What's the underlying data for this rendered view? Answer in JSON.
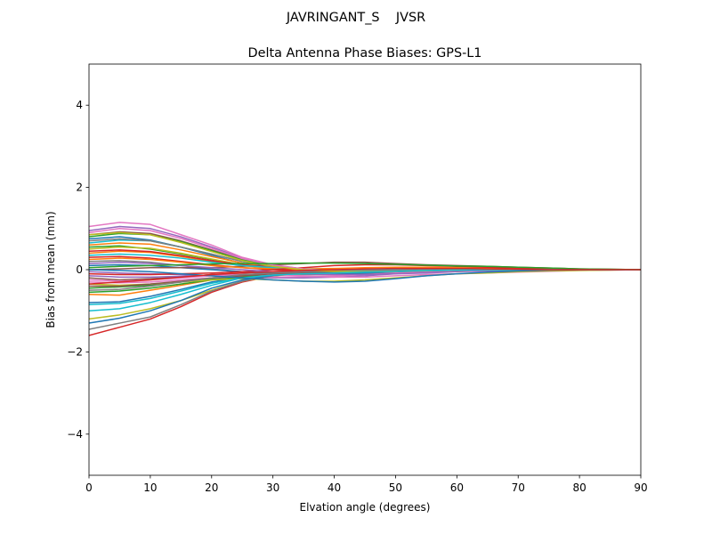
{
  "figure": {
    "suptitle": "JAVRINGANT_S    JVSR"
  },
  "chart_data": {
    "type": "line",
    "title": "Delta Antenna Phase Biases: GPS-L1",
    "xlabel": "Elvation angle (degrees)",
    "ylabel": "Bias from mean (mm)",
    "xlim": [
      0,
      90
    ],
    "ylim": [
      -5,
      5
    ],
    "xticks": [
      0,
      10,
      20,
      30,
      40,
      50,
      60,
      70,
      80,
      90
    ],
    "yticks": [
      -4,
      -2,
      0,
      2,
      4
    ],
    "xtick_labels": [
      "0",
      "10",
      "20",
      "30",
      "40",
      "50",
      "60",
      "70",
      "80",
      "90"
    ],
    "ytick_labels": [
      "−4",
      "−2",
      "0",
      "2",
      "4"
    ],
    "grid": false,
    "legend": "none",
    "x": [
      0,
      5,
      10,
      15,
      20,
      25,
      30,
      35,
      40,
      45,
      50,
      55,
      60,
      65,
      70,
      75,
      80,
      85,
      90
    ],
    "series": [
      {
        "color": "#1f77b4",
        "values": [
          0.75,
          0.8,
          0.72,
          0.55,
          0.35,
          0.15,
          0.05,
          -0.05,
          -0.1,
          -0.1,
          -0.08,
          -0.05,
          -0.02,
          0.0,
          0.02,
          0.02,
          0.01,
          0.0,
          0.0
        ]
      },
      {
        "color": "#ff7f0e",
        "values": [
          -0.6,
          -0.62,
          -0.5,
          -0.38,
          -0.25,
          -0.15,
          -0.1,
          -0.08,
          -0.07,
          -0.05,
          -0.03,
          -0.02,
          -0.01,
          0.0,
          0.01,
          0.01,
          0.0,
          0.0,
          0.0
        ]
      },
      {
        "color": "#2ca02c",
        "values": [
          0.55,
          0.58,
          0.5,
          0.38,
          0.25,
          0.12,
          0.05,
          0.0,
          -0.03,
          -0.04,
          -0.03,
          -0.02,
          -0.01,
          0.0,
          0.01,
          0.01,
          0.0,
          0.0,
          0.0
        ]
      },
      {
        "color": "#d62728",
        "values": [
          -1.6,
          -1.4,
          -1.2,
          -0.9,
          -0.55,
          -0.3,
          -0.15,
          -0.08,
          -0.05,
          -0.03,
          -0.02,
          -0.01,
          0.0,
          0.0,
          0.0,
          0.0,
          0.0,
          0.0,
          0.0
        ]
      },
      {
        "color": "#9467bd",
        "values": [
          0.95,
          1.05,
          1.0,
          0.8,
          0.55,
          0.28,
          0.1,
          0.0,
          -0.05,
          -0.06,
          -0.05,
          -0.03,
          -0.01,
          0.0,
          0.01,
          0.01,
          0.0,
          0.0,
          0.0
        ]
      },
      {
        "color": "#8c564b",
        "values": [
          -0.2,
          -0.25,
          -0.22,
          -0.18,
          -0.12,
          -0.08,
          -0.05,
          -0.03,
          -0.02,
          -0.01,
          0.0,
          0.01,
          0.01,
          0.01,
          0.01,
          0.0,
          0.0,
          0.0,
          0.0
        ]
      },
      {
        "color": "#e377c2",
        "values": [
          1.05,
          1.15,
          1.1,
          0.85,
          0.6,
          0.3,
          0.12,
          0.02,
          -0.03,
          -0.05,
          -0.04,
          -0.02,
          -0.01,
          0.0,
          0.01,
          0.01,
          0.0,
          0.0,
          0.0
        ]
      },
      {
        "color": "#7f7f7f",
        "values": [
          0.2,
          0.22,
          0.18,
          0.1,
          0.02,
          -0.05,
          -0.1,
          -0.12,
          -0.12,
          -0.1,
          -0.07,
          -0.04,
          -0.02,
          0.0,
          0.01,
          0.01,
          0.0,
          0.0,
          0.0
        ]
      },
      {
        "color": "#bcbd22",
        "values": [
          -1.2,
          -1.1,
          -0.95,
          -0.75,
          -0.5,
          -0.28,
          -0.15,
          -0.1,
          -0.08,
          -0.05,
          -0.03,
          -0.01,
          0.0,
          0.01,
          0.01,
          0.0,
          0.0,
          0.0,
          0.0
        ]
      },
      {
        "color": "#17becf",
        "values": [
          0.65,
          0.72,
          0.7,
          0.55,
          0.38,
          0.2,
          0.08,
          0.0,
          -0.04,
          -0.05,
          -0.04,
          -0.02,
          -0.01,
          0.0,
          0.01,
          0.01,
          0.0,
          0.0,
          0.0
        ]
      },
      {
        "color": "#1f77b4",
        "values": [
          -0.8,
          -0.78,
          -0.65,
          -0.48,
          -0.3,
          -0.18,
          -0.12,
          -0.1,
          -0.08,
          -0.06,
          -0.04,
          -0.02,
          -0.01,
          0.0,
          0.01,
          0.01,
          0.0,
          0.0,
          0.0
        ]
      },
      {
        "color": "#ff7f0e",
        "values": [
          0.4,
          0.45,
          0.42,
          0.32,
          0.2,
          0.1,
          0.03,
          -0.02,
          -0.04,
          -0.04,
          -0.03,
          -0.02,
          -0.01,
          0.0,
          0.0,
          0.0,
          0.0,
          0.0,
          0.0
        ]
      },
      {
        "color": "#2ca02c",
        "values": [
          -0.45,
          -0.42,
          -0.38,
          -0.3,
          -0.22,
          -0.15,
          -0.1,
          -0.08,
          -0.06,
          -0.04,
          -0.02,
          -0.01,
          0.0,
          0.01,
          0.01,
          0.0,
          0.0,
          0.0,
          0.0
        ]
      },
      {
        "color": "#d62728",
        "values": [
          0.3,
          0.32,
          0.28,
          0.2,
          0.12,
          0.05,
          0.0,
          -0.03,
          -0.05,
          -0.05,
          -0.04,
          -0.02,
          -0.01,
          0.0,
          0.0,
          0.0,
          0.0,
          0.0,
          0.0
        ]
      },
      {
        "color": "#9467bd",
        "values": [
          -0.05,
          -0.08,
          -0.1,
          -0.12,
          -0.15,
          -0.18,
          -0.2,
          -0.2,
          -0.18,
          -0.15,
          -0.1,
          -0.06,
          -0.03,
          -0.01,
          0.0,
          0.0,
          0.0,
          0.0,
          0.0
        ]
      },
      {
        "color": "#8c564b",
        "values": [
          0.85,
          0.92,
          0.88,
          0.7,
          0.48,
          0.25,
          0.1,
          0.02,
          -0.02,
          -0.03,
          -0.03,
          -0.02,
          -0.01,
          0.0,
          0.0,
          0.0,
          0.0,
          0.0,
          0.0
        ]
      },
      {
        "color": "#e377c2",
        "values": [
          -0.3,
          -0.32,
          -0.3,
          -0.25,
          -0.2,
          -0.18,
          -0.18,
          -0.17,
          -0.15,
          -0.12,
          -0.08,
          -0.05,
          -0.02,
          0.0,
          0.0,
          0.0,
          0.0,
          0.0,
          0.0
        ]
      },
      {
        "color": "#7f7f7f",
        "values": [
          -1.45,
          -1.3,
          -1.15,
          -0.85,
          -0.52,
          -0.28,
          -0.15,
          -0.08,
          -0.04,
          -0.02,
          -0.01,
          0.0,
          0.0,
          0.0,
          0.0,
          0.0,
          0.0,
          0.0,
          0.0
        ]
      },
      {
        "color": "#bcbd22",
        "values": [
          0.5,
          0.55,
          0.52,
          0.4,
          0.26,
          0.12,
          0.04,
          0.0,
          -0.02,
          -0.03,
          -0.02,
          -0.01,
          0.0,
          0.0,
          0.0,
          0.0,
          0.0,
          0.0,
          0.0
        ]
      },
      {
        "color": "#17becf",
        "values": [
          -1.0,
          -0.95,
          -0.8,
          -0.6,
          -0.38,
          -0.2,
          -0.12,
          -0.08,
          -0.06,
          -0.04,
          -0.02,
          -0.01,
          0.0,
          0.0,
          0.0,
          0.0,
          0.0,
          0.0,
          0.0
        ]
      },
      {
        "color": "#1f77b4",
        "values": [
          0.1,
          0.12,
          0.1,
          0.05,
          0.0,
          -0.05,
          -0.08,
          -0.1,
          -0.1,
          -0.08,
          -0.05,
          -0.03,
          -0.01,
          0.0,
          0.0,
          0.0,
          0.0,
          0.0,
          0.0
        ]
      },
      {
        "color": "#ff7f0e",
        "values": [
          0.6,
          0.65,
          0.62,
          0.48,
          0.32,
          0.16,
          0.06,
          0.0,
          -0.03,
          -0.04,
          -0.03,
          -0.02,
          -0.01,
          0.0,
          0.0,
          0.0,
          0.0,
          0.0,
          0.0
        ]
      },
      {
        "color": "#2ca02c",
        "values": [
          -0.55,
          -0.52,
          -0.45,
          -0.35,
          -0.25,
          -0.18,
          -0.13,
          -0.1,
          -0.08,
          -0.06,
          -0.04,
          -0.02,
          -0.01,
          0.0,
          0.0,
          0.0,
          0.0,
          0.0,
          0.0
        ]
      },
      {
        "color": "#d62728",
        "values": [
          0.45,
          0.48,
          0.44,
          0.34,
          0.22,
          0.12,
          0.05,
          0.01,
          -0.01,
          -0.02,
          -0.02,
          -0.01,
          0.0,
          0.0,
          0.0,
          0.0,
          0.0,
          0.0,
          0.0
        ]
      },
      {
        "color": "#9467bd",
        "values": [
          -0.15,
          -0.18,
          -0.18,
          -0.16,
          -0.14,
          -0.12,
          -0.1,
          -0.08,
          -0.06,
          -0.04,
          -0.02,
          -0.01,
          0.0,
          0.0,
          0.0,
          0.0,
          0.0,
          0.0,
          0.0
        ]
      },
      {
        "color": "#8c564b",
        "values": [
          0.0,
          0.02,
          0.05,
          0.05,
          0.05,
          0.08,
          0.12,
          0.15,
          0.18,
          0.18,
          0.15,
          0.12,
          0.1,
          0.08,
          0.06,
          0.04,
          0.02,
          0.01,
          0.0
        ]
      },
      {
        "color": "#e377c2",
        "values": [
          -0.25,
          -0.28,
          -0.25,
          -0.2,
          -0.15,
          -0.12,
          -0.12,
          -0.15,
          -0.18,
          -0.18,
          -0.15,
          -0.12,
          -0.1,
          -0.08,
          -0.06,
          -0.04,
          -0.02,
          -0.01,
          0.0
        ]
      },
      {
        "color": "#7f7f7f",
        "values": [
          0.7,
          0.75,
          0.7,
          0.55,
          0.38,
          0.2,
          0.08,
          0.0,
          -0.04,
          -0.06,
          -0.05,
          -0.03,
          -0.01,
          0.0,
          0.0,
          0.0,
          0.0,
          0.0,
          0.0
        ]
      },
      {
        "color": "#bcbd22",
        "values": [
          -0.35,
          -0.38,
          -0.35,
          -0.3,
          -0.25,
          -0.22,
          -0.25,
          -0.28,
          -0.28,
          -0.25,
          -0.2,
          -0.15,
          -0.1,
          -0.08,
          -0.05,
          -0.03,
          -0.02,
          -0.01,
          0.0
        ]
      },
      {
        "color": "#17becf",
        "values": [
          0.35,
          0.38,
          0.35,
          0.28,
          0.18,
          0.1,
          0.05,
          0.02,
          0.0,
          0.0,
          0.0,
          0.0,
          0.0,
          0.0,
          0.0,
          0.0,
          0.0,
          0.0,
          0.0
        ]
      },
      {
        "color": "#1f77b4",
        "values": [
          -1.3,
          -1.18,
          -1.0,
          -0.75,
          -0.45,
          -0.25,
          -0.14,
          -0.08,
          -0.05,
          -0.03,
          -0.02,
          -0.01,
          0.0,
          0.0,
          0.0,
          0.0,
          0.0,
          0.0,
          0.0
        ]
      },
      {
        "color": "#ff7f0e",
        "values": [
          0.25,
          0.28,
          0.25,
          0.18,
          0.1,
          0.05,
          0.02,
          0.02,
          0.03,
          0.05,
          0.06,
          0.06,
          0.05,
          0.04,
          0.03,
          0.02,
          0.01,
          0.0,
          0.0
        ]
      },
      {
        "color": "#2ca02c",
        "values": [
          0.8,
          0.88,
          0.85,
          0.68,
          0.46,
          0.24,
          0.1,
          0.02,
          -0.02,
          -0.04,
          -0.03,
          -0.02,
          -0.01,
          0.0,
          0.0,
          0.0,
          0.0,
          0.0,
          0.0
        ]
      },
      {
        "color": "#d62728",
        "values": [
          -0.1,
          -0.12,
          -0.12,
          -0.1,
          -0.08,
          -0.05,
          0.0,
          0.05,
          0.1,
          0.12,
          0.12,
          0.1,
          0.08,
          0.06,
          0.04,
          0.02,
          0.01,
          0.0,
          0.0
        ]
      },
      {
        "color": "#9467bd",
        "values": [
          0.15,
          0.18,
          0.15,
          0.1,
          0.05,
          0.0,
          -0.05,
          -0.1,
          -0.12,
          -0.12,
          -0.1,
          -0.08,
          -0.05,
          -0.03,
          -0.01,
          0.0,
          0.0,
          0.0,
          0.0
        ]
      },
      {
        "color": "#8c564b",
        "values": [
          -0.4,
          -0.4,
          -0.35,
          -0.28,
          -0.2,
          -0.15,
          -0.1,
          -0.08,
          -0.05,
          -0.03,
          -0.02,
          -0.01,
          0.0,
          0.0,
          0.0,
          0.0,
          0.0,
          0.0,
          0.0
        ]
      },
      {
        "color": "#e377c2",
        "values": [
          0.9,
          1.0,
          0.95,
          0.76,
          0.52,
          0.27,
          0.11,
          0.02,
          -0.03,
          -0.05,
          -0.04,
          -0.02,
          -0.01,
          0.0,
          0.0,
          0.0,
          0.0,
          0.0,
          0.0
        ]
      },
      {
        "color": "#7f7f7f",
        "values": [
          -0.5,
          -0.48,
          -0.4,
          -0.3,
          -0.2,
          -0.12,
          -0.08,
          -0.05,
          -0.03,
          -0.02,
          -0.01,
          0.0,
          0.0,
          0.0,
          0.0,
          0.0,
          0.0,
          0.0,
          0.0
        ]
      },
      {
        "color": "#bcbd22",
        "values": [
          0.85,
          0.9,
          0.85,
          0.66,
          0.44,
          0.22,
          0.08,
          0.0,
          -0.04,
          -0.05,
          -0.04,
          -0.02,
          -0.01,
          0.0,
          0.0,
          0.0,
          0.0,
          0.0,
          0.0
        ]
      },
      {
        "color": "#17becf",
        "values": [
          -0.85,
          -0.82,
          -0.7,
          -0.52,
          -0.33,
          -0.2,
          -0.13,
          -0.1,
          -0.08,
          -0.06,
          -0.04,
          -0.02,
          -0.01,
          0.0,
          0.0,
          0.0,
          0.0,
          0.0,
          0.0
        ]
      },
      {
        "color": "#1f77b4",
        "values": [
          0.0,
          -0.02,
          -0.05,
          -0.1,
          -0.15,
          -0.2,
          -0.25,
          -0.28,
          -0.3,
          -0.28,
          -0.22,
          -0.15,
          -0.1,
          -0.06,
          -0.03,
          -0.01,
          0.0,
          0.0,
          0.0
        ]
      },
      {
        "color": "#2ca02c",
        "values": [
          0.05,
          0.08,
          0.1,
          0.12,
          0.14,
          0.15,
          0.15,
          0.16,
          0.16,
          0.15,
          0.13,
          0.11,
          0.09,
          0.08,
          0.06,
          0.04,
          0.02,
          0.01,
          0.0
        ]
      },
      {
        "color": "#d62728",
        "values": [
          -0.35,
          -0.3,
          -0.25,
          -0.18,
          -0.12,
          -0.08,
          -0.05,
          -0.02,
          0.0,
          0.02,
          0.03,
          0.03,
          0.03,
          0.02,
          0.01,
          0.0,
          0.0,
          0.0,
          0.0
        ]
      }
    ]
  }
}
